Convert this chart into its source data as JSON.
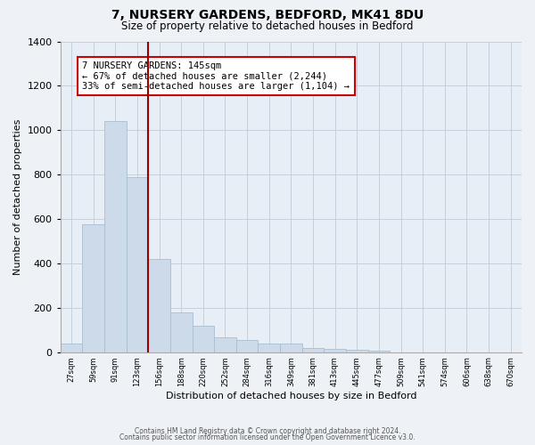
{
  "title": "7, NURSERY GARDENS, BEDFORD, MK41 8DU",
  "subtitle": "Size of property relative to detached houses in Bedford",
  "xlabel": "Distribution of detached houses by size in Bedford",
  "ylabel": "Number of detached properties",
  "bar_color": "#ccdaea",
  "bar_edge_color": "#a8bfd0",
  "marker_line_color": "#990000",
  "annotation_line1": "7 NURSERY GARDENS: 145sqm",
  "annotation_line2": "← 67% of detached houses are smaller (2,244)",
  "annotation_line3": "33% of semi-detached houses are larger (1,104) →",
  "bin_labels": [
    "27sqm",
    "59sqm",
    "91sqm",
    "123sqm",
    "156sqm",
    "188sqm",
    "220sqm",
    "252sqm",
    "284sqm",
    "316sqm",
    "349sqm",
    "381sqm",
    "413sqm",
    "445sqm",
    "477sqm",
    "509sqm",
    "541sqm",
    "574sqm",
    "606sqm",
    "638sqm",
    "670sqm"
  ],
  "bar_heights": [
    40,
    575,
    1040,
    790,
    420,
    180,
    120,
    65,
    55,
    40,
    40,
    20,
    15,
    10,
    5,
    0,
    0,
    0,
    0,
    0,
    0
  ],
  "ylim": [
    0,
    1400
  ],
  "yticks": [
    0,
    200,
    400,
    600,
    800,
    1000,
    1200,
    1400
  ],
  "marker_bar_index": 4,
  "footnote1": "Contains HM Land Registry data © Crown copyright and database right 2024.",
  "footnote2": "Contains public sector information licensed under the Open Government Licence v3.0.",
  "background_color": "#eef2f7",
  "plot_bg_color": "#e8eef5"
}
